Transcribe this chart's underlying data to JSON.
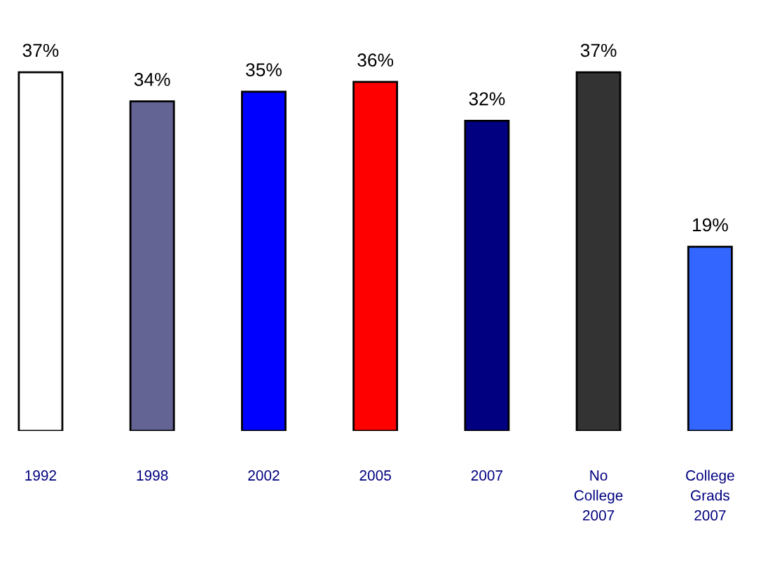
{
  "chart_data": {
    "type": "bar",
    "categories": [
      "1992",
      "1998",
      "2002",
      "2005",
      "2007",
      "No\nCollege\n2007",
      "College\nGrads\n2007"
    ],
    "values": [
      37,
      34,
      35,
      36,
      32,
      37,
      19
    ],
    "value_labels": [
      "37%",
      "34%",
      "35%",
      "36%",
      "32%",
      "37%",
      "19%"
    ],
    "colors": [
      "#ffffff",
      "#636394",
      "#0000ff",
      "#ff0000",
      "#000080",
      "#333333",
      "#3366ff"
    ],
    "grid": false
  }
}
